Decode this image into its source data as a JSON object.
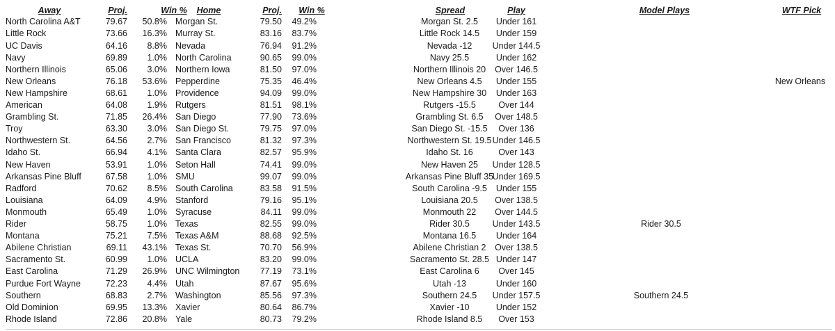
{
  "colors": {
    "text": "#1a1a1a",
    "background": "#ffffff",
    "gridline": "#c9c9c9"
  },
  "table": {
    "headers": [
      {
        "id": "away",
        "label": "Away"
      },
      {
        "id": "away_proj",
        "label": "Proj."
      },
      {
        "id": "away_win",
        "label": "Win %"
      },
      {
        "id": "home",
        "label": "Home"
      },
      {
        "id": "home_proj",
        "label": "Proj."
      },
      {
        "id": "home_win",
        "label": "Win %"
      },
      {
        "id": "spread",
        "label": "Spread"
      },
      {
        "id": "play",
        "label": "Play"
      },
      {
        "id": "model_play",
        "label": "Model Plays"
      },
      {
        "id": "wtf_pick",
        "label": "WTF Pick"
      }
    ],
    "rows": [
      {
        "away": "North Carolina A&T",
        "away_proj": "79.67",
        "away_win": "50.8%",
        "home": "Morgan St.",
        "home_proj": "79.50",
        "home_win": "49.2%",
        "spread": "Morgan St. 2.5",
        "play": "Under 161",
        "model_play": "",
        "wtf_pick": ""
      },
      {
        "away": "Little Rock",
        "away_proj": "73.66",
        "away_win": "16.3%",
        "home": "Murray St.",
        "home_proj": "83.16",
        "home_win": "83.7%",
        "spread": "Little Rock 14.5",
        "play": "Under 159",
        "model_play": "",
        "wtf_pick": ""
      },
      {
        "away": "UC Davis",
        "away_proj": "64.16",
        "away_win": "8.8%",
        "home": "Nevada",
        "home_proj": "76.94",
        "home_win": "91.2%",
        "spread": "Nevada -12",
        "play": "Under 144.5",
        "model_play": "",
        "wtf_pick": ""
      },
      {
        "away": "Navy",
        "away_proj": "69.89",
        "away_win": "1.0%",
        "home": "North Carolina",
        "home_proj": "90.65",
        "home_win": "99.0%",
        "spread": "Navy 25.5",
        "play": "Under 162",
        "model_play": "",
        "wtf_pick": ""
      },
      {
        "away": "Northern Illinois",
        "away_proj": "65.06",
        "away_win": "3.0%",
        "home": "Northern Iowa",
        "home_proj": "81.50",
        "home_win": "97.0%",
        "spread": "Northern Illinois 20",
        "play": "Over 146.5",
        "model_play": "",
        "wtf_pick": ""
      },
      {
        "away": "New Orleans",
        "away_proj": "76.18",
        "away_win": "53.6%",
        "home": "Pepperdine",
        "home_proj": "75.35",
        "home_win": "46.4%",
        "spread": "New Orleans 4.5",
        "play": "Under 155",
        "model_play": "",
        "wtf_pick": "New Orleans"
      },
      {
        "away": "New Hampshire",
        "away_proj": "68.61",
        "away_win": "1.0%",
        "home": "Providence",
        "home_proj": "94.09",
        "home_win": "99.0%",
        "spread": "New Hampshire 30",
        "play": "Under 163",
        "model_play": "",
        "wtf_pick": ""
      },
      {
        "away": "American",
        "away_proj": "64.08",
        "away_win": "1.9%",
        "home": "Rutgers",
        "home_proj": "81.51",
        "home_win": "98.1%",
        "spread": "Rutgers -15.5",
        "play": "Over 144",
        "model_play": "",
        "wtf_pick": ""
      },
      {
        "away": "Grambling St.",
        "away_proj": "71.85",
        "away_win": "26.4%",
        "home": "San Diego",
        "home_proj": "77.90",
        "home_win": "73.6%",
        "spread": "Grambling St. 6.5",
        "play": "Over 148.5",
        "model_play": "",
        "wtf_pick": ""
      },
      {
        "away": "Troy",
        "away_proj": "63.30",
        "away_win": "3.0%",
        "home": "San Diego St.",
        "home_proj": "79.75",
        "home_win": "97.0%",
        "spread": "San Diego St. -15.5",
        "play": "Over 136",
        "model_play": "",
        "wtf_pick": ""
      },
      {
        "away": "Northwestern St.",
        "away_proj": "64.56",
        "away_win": "2.7%",
        "home": "San Francisco",
        "home_proj": "81.32",
        "home_win": "97.3%",
        "spread": "Northwestern St. 19.5",
        "play": "Under 146.5",
        "model_play": "",
        "wtf_pick": ""
      },
      {
        "away": "Idaho St.",
        "away_proj": "66.94",
        "away_win": "4.1%",
        "home": "Santa Clara",
        "home_proj": "82.57",
        "home_win": "95.9%",
        "spread": "Idaho St. 16",
        "play": "Over 143",
        "model_play": "",
        "wtf_pick": ""
      },
      {
        "away": "New Haven",
        "away_proj": "53.91",
        "away_win": "1.0%",
        "home": "Seton Hall",
        "home_proj": "74.41",
        "home_win": "99.0%",
        "spread": "New Haven 25",
        "play": "Under 128.5",
        "model_play": "",
        "wtf_pick": ""
      },
      {
        "away": "Arkansas Pine Bluff",
        "away_proj": "67.58",
        "away_win": "1.0%",
        "home": "SMU",
        "home_proj": "99.07",
        "home_win": "99.0%",
        "spread": "Arkansas Pine Bluff 35",
        "play": "Under 169.5",
        "model_play": "",
        "wtf_pick": ""
      },
      {
        "away": "Radford",
        "away_proj": "70.62",
        "away_win": "8.5%",
        "home": "South Carolina",
        "home_proj": "83.58",
        "home_win": "91.5%",
        "spread": "South Carolina -9.5",
        "play": "Under 155",
        "model_play": "",
        "wtf_pick": ""
      },
      {
        "away": "Louisiana",
        "away_proj": "64.09",
        "away_win": "4.9%",
        "home": "Stanford",
        "home_proj": "79.16",
        "home_win": "95.1%",
        "spread": "Louisiana 20.5",
        "play": "Over 138.5",
        "model_play": "",
        "wtf_pick": ""
      },
      {
        "away": "Monmouth",
        "away_proj": "65.49",
        "away_win": "1.0%",
        "home": "Syracuse",
        "home_proj": "84.11",
        "home_win": "99.0%",
        "spread": "Monmouth 22",
        "play": "Over 144.5",
        "model_play": "",
        "wtf_pick": ""
      },
      {
        "away": "Rider",
        "away_proj": "58.75",
        "away_win": "1.0%",
        "home": "Texas",
        "home_proj": "82.55",
        "home_win": "99.0%",
        "spread": "Rider 30.5",
        "play": "Under 143.5",
        "model_play": "Rider 30.5",
        "wtf_pick": ""
      },
      {
        "away": "Montana",
        "away_proj": "75.21",
        "away_win": "7.5%",
        "home": "Texas A&M",
        "home_proj": "88.68",
        "home_win": "92.5%",
        "spread": "Montana 16.5",
        "play": "Under 164",
        "model_play": "",
        "wtf_pick": ""
      },
      {
        "away": "Abilene Christian",
        "away_proj": "69.11",
        "away_win": "43.1%",
        "home": "Texas St.",
        "home_proj": "70.70",
        "home_win": "56.9%",
        "spread": "Abilene Christian 2",
        "play": "Over 138.5",
        "model_play": "",
        "wtf_pick": ""
      },
      {
        "away": "Sacramento St.",
        "away_proj": "60.99",
        "away_win": "1.0%",
        "home": "UCLA",
        "home_proj": "83.20",
        "home_win": "99.0%",
        "spread": "Sacramento St. 28.5",
        "play": "Under 147",
        "model_play": "",
        "wtf_pick": ""
      },
      {
        "away": "East Carolina",
        "away_proj": "71.29",
        "away_win": "26.9%",
        "home": "UNC Wilmington",
        "home_proj": "77.19",
        "home_win": "73.1%",
        "spread": "East Carolina 6",
        "play": "Over 145",
        "model_play": "",
        "wtf_pick": ""
      },
      {
        "away": "Purdue Fort Wayne",
        "away_proj": "72.23",
        "away_win": "4.4%",
        "home": "Utah",
        "home_proj": "87.67",
        "home_win": "95.6%",
        "spread": "Utah -13",
        "play": "Under 160",
        "model_play": "",
        "wtf_pick": ""
      },
      {
        "away": "Southern",
        "away_proj": "68.83",
        "away_win": "2.7%",
        "home": "Washington",
        "home_proj": "85.56",
        "home_win": "97.3%",
        "spread": "Southern 24.5",
        "play": "Under 157.5",
        "model_play": "Southern 24.5",
        "wtf_pick": ""
      },
      {
        "away": "Old Dominion",
        "away_proj": "69.95",
        "away_win": "13.3%",
        "home": "Xavier",
        "home_proj": "80.64",
        "home_win": "86.7%",
        "spread": "Xavier -10",
        "play": "Under 152",
        "model_play": "",
        "wtf_pick": ""
      },
      {
        "away": "Rhode Island",
        "away_proj": "72.86",
        "away_win": "20.8%",
        "home": "Yale",
        "home_proj": "80.73",
        "home_win": "79.2%",
        "spread": "Rhode Island 8.5",
        "play": "Over 153",
        "model_play": "",
        "wtf_pick": ""
      }
    ]
  }
}
